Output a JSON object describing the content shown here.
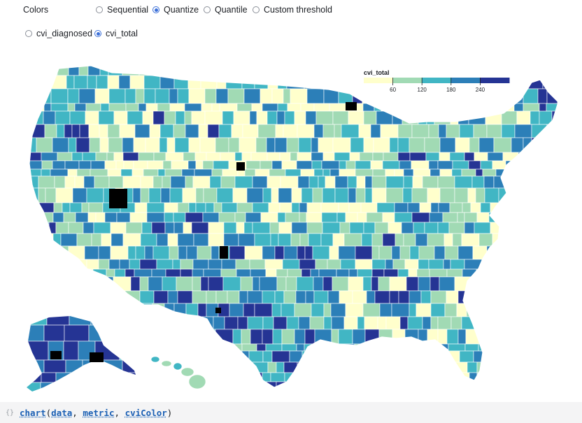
{
  "controls": {
    "colors": {
      "label": "Colors",
      "options": [
        {
          "label": "Sequential",
          "checked": false
        },
        {
          "label": "Quantize",
          "checked": true
        },
        {
          "label": "Quantile",
          "checked": false
        },
        {
          "label": "Custom threshold",
          "checked": false
        }
      ]
    },
    "metric": {
      "options": [
        {
          "label": "cvi_diagnosed",
          "checked": false
        },
        {
          "label": "cvi_total",
          "checked": true
        }
      ]
    }
  },
  "legend": {
    "title": "cvi_total",
    "ticks": [
      "60",
      "120",
      "180",
      "240"
    ],
    "colors": [
      "#ffffcc",
      "#a1dab4",
      "#41b6c4",
      "#2c7fb8",
      "#253494"
    ]
  },
  "palette": {
    "lightest": "#ffffcc",
    "light": "#a1dab4",
    "mid": "#41b6c4",
    "dark": "#2c7fb8",
    "darkest": "#253494",
    "missing": "#000000",
    "border": "#ffffff"
  },
  "code": {
    "gutter": "{}",
    "fn": "chart",
    "open": "(",
    "args": [
      "data",
      "metric",
      "cviColor"
    ],
    "close": ")"
  }
}
